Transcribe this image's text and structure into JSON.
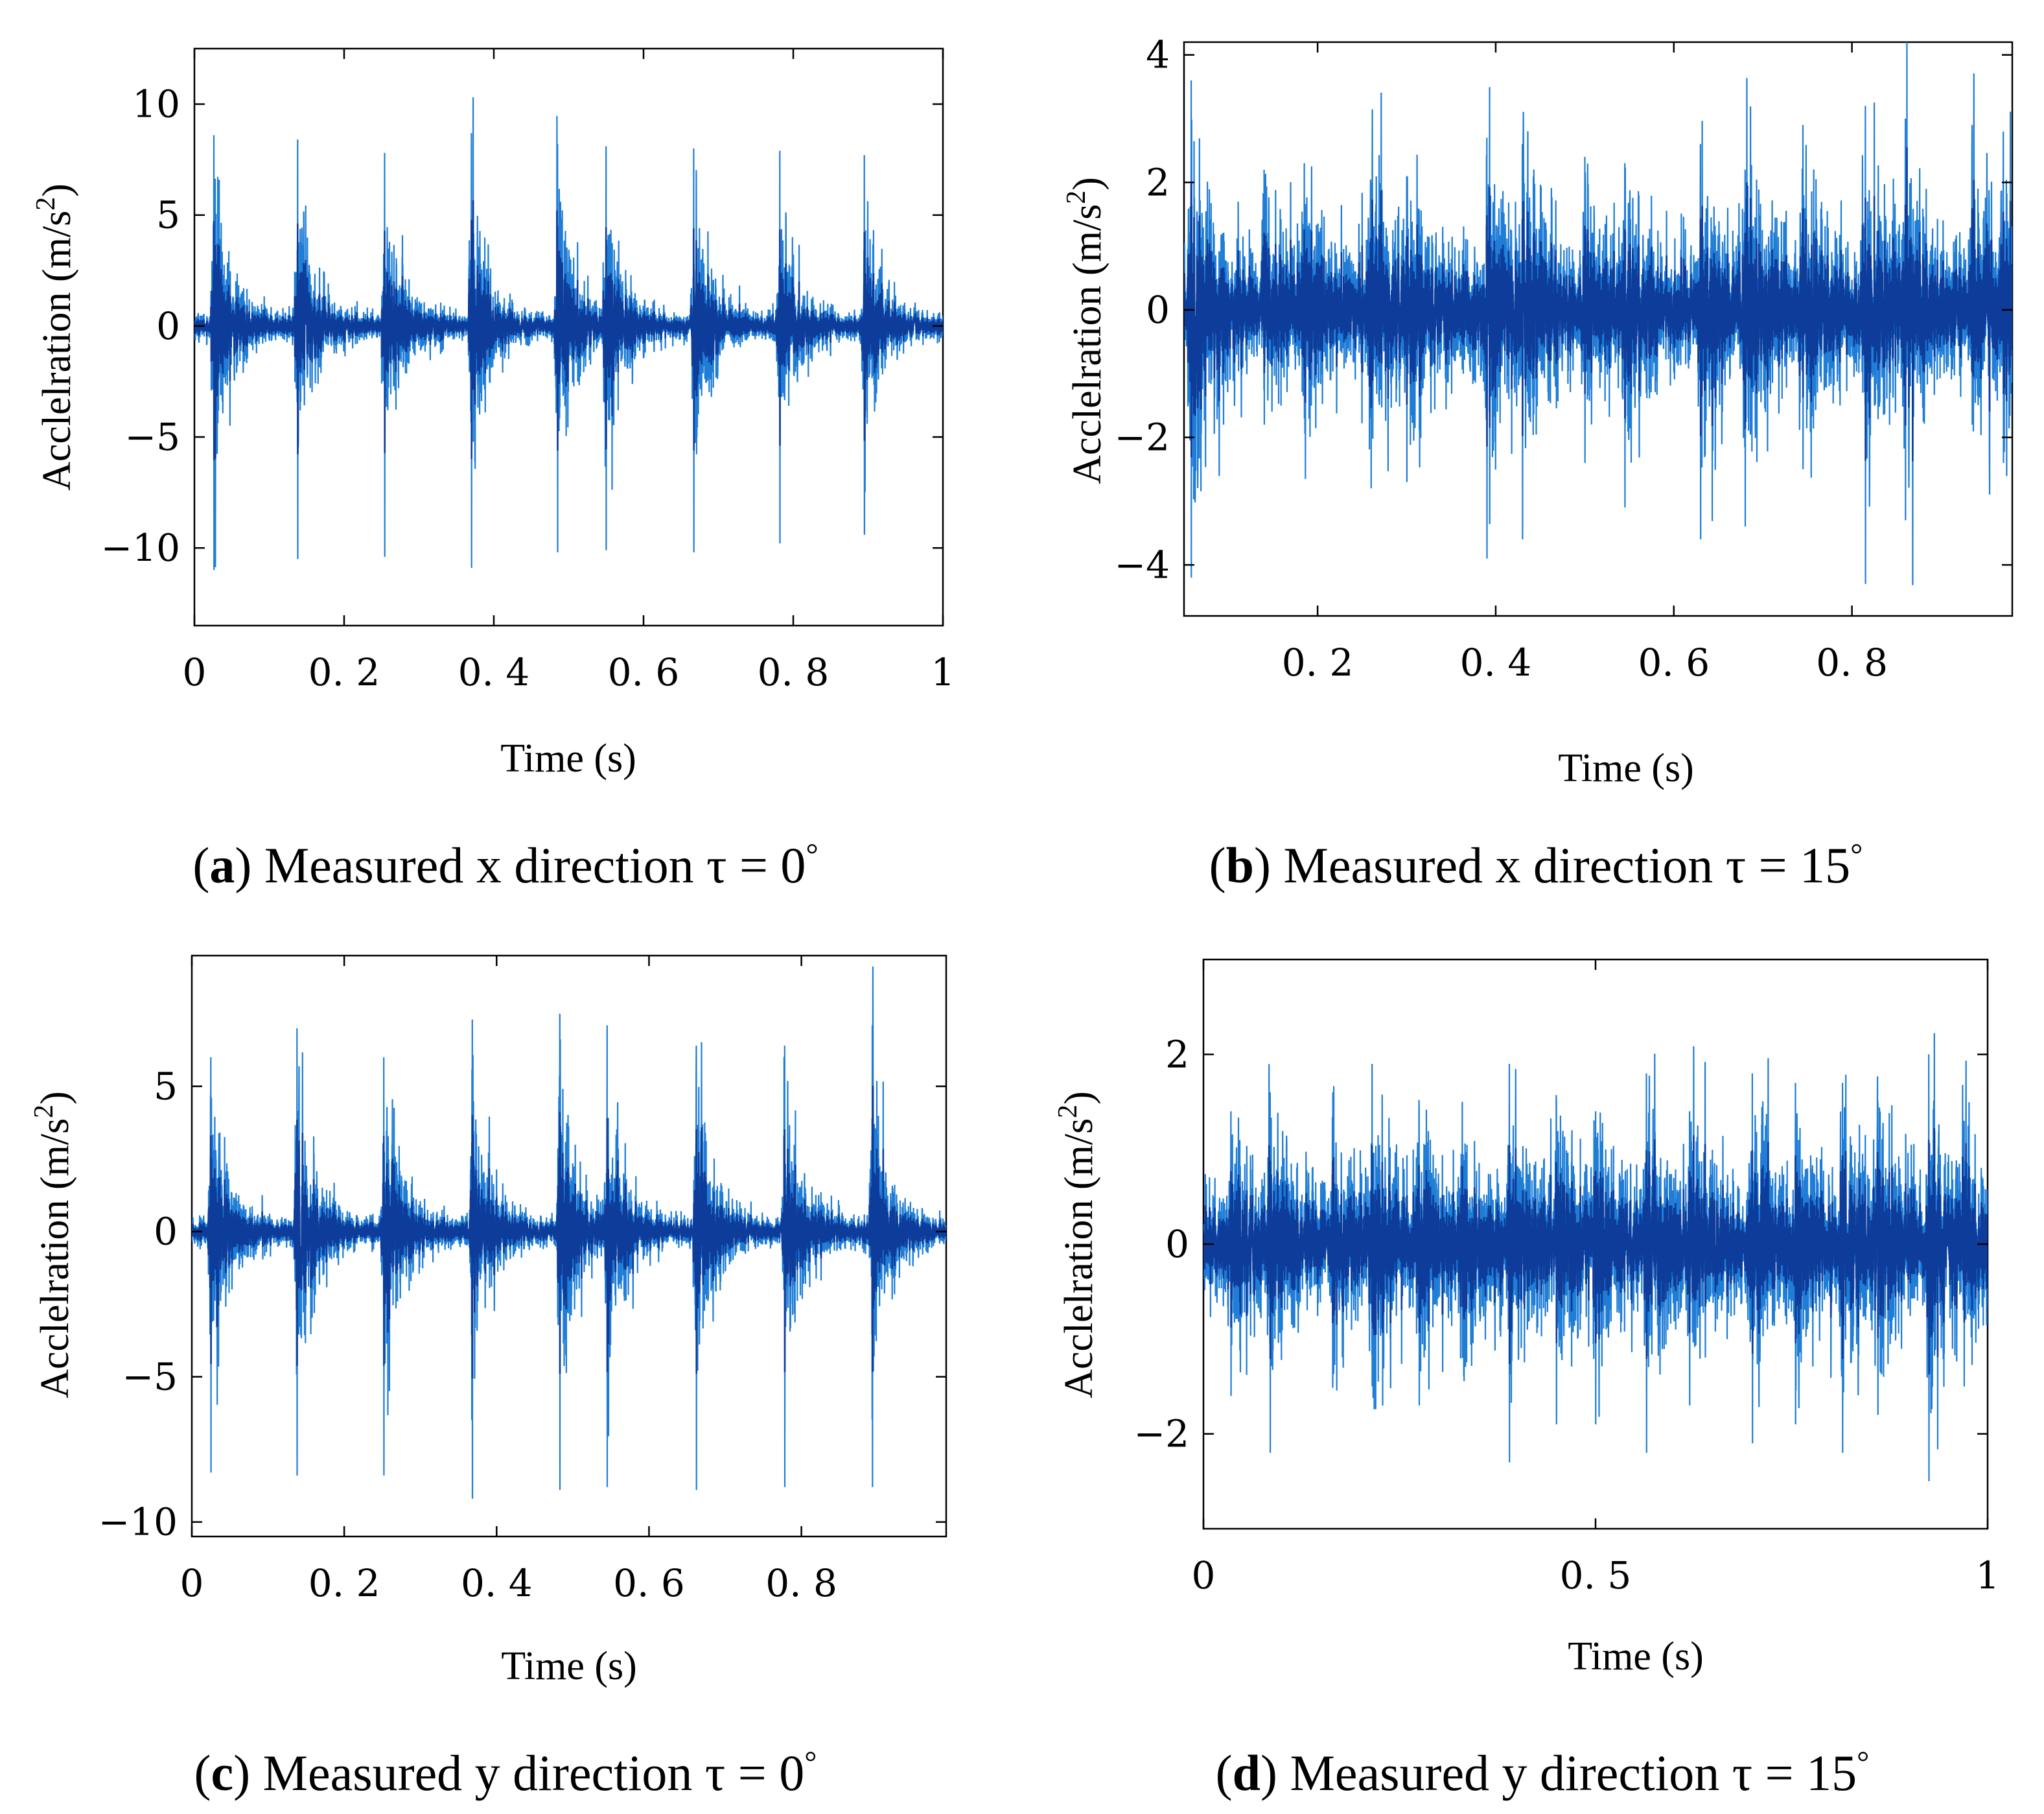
{
  "colors": {
    "signal_dark": "#0d3c9a",
    "signal_light": "#1f7dd6",
    "axis": "#000000"
  },
  "panels": [
    {
      "caption": {
        "open": "(",
        "letter": "a",
        "close": ")",
        "text": " Measured x direction  τ = 0",
        "degree": "°"
      },
      "chart_data": {
        "type": "line",
        "xlabel": "Time (s)",
        "ylabel_main": "Acclelration (m/s",
        "ylabel_sup": "2",
        "ylabel_end": ")",
        "xlim": [
          0,
          1
        ],
        "ylim": [
          -13.5,
          12.5
        ],
        "xticks": [
          0,
          0.2,
          0.4,
          0.6,
          0.8,
          1
        ],
        "xtick_labels": [
          "0",
          "0. 2",
          "0. 4",
          "0. 6",
          "0. 8",
          "1"
        ],
        "yticks": [
          10,
          5,
          0,
          -5,
          -10
        ],
        "ytick_labels": [
          "10",
          "5",
          "0",
          "−5",
          "−10"
        ],
        "noise_std": 0.3,
        "impulses": [
          {
            "t": 0.026,
            "peak_pos": 8.6,
            "peak_neg": -11.0
          },
          {
            "t": 0.138,
            "peak_pos": 8.4,
            "peak_neg": -10.5
          },
          {
            "t": 0.254,
            "peak_pos": 7.8,
            "peak_neg": -10.4
          },
          {
            "t": 0.37,
            "peak_pos": 8.7,
            "peak_neg": -10.9
          },
          {
            "t": 0.485,
            "peak_pos": 8.2,
            "peak_neg": -10.2
          },
          {
            "t": 0.55,
            "peak_pos": 8.1,
            "peak_neg": -10.1
          },
          {
            "t": 0.667,
            "peak_pos": 8.0,
            "peak_neg": -10.2
          },
          {
            "t": 0.782,
            "peak_pos": 7.9,
            "peak_neg": -9.8
          },
          {
            "t": 0.895,
            "peak_pos": 7.7,
            "peak_neg": -9.4
          }
        ]
      }
    },
    {
      "caption": {
        "open": "(",
        "letter": "b",
        "close": ")",
        "text": " Measured x direction  τ = 15",
        "degree": "°"
      },
      "chart_data": {
        "type": "line",
        "xlabel": "Time (s)",
        "ylabel_main": "Acclelration (m/s",
        "ylabel_sup": "2",
        "ylabel_end": ")",
        "xlim": [
          0.05,
          0.98
        ],
        "ylim": [
          -4.8,
          4.2
        ],
        "xticks": [
          0.2,
          0.4,
          0.6,
          0.8
        ],
        "xtick_labels": [
          "0. 2",
          "0. 4",
          "0. 6",
          "0. 8"
        ],
        "yticks": [
          4,
          2,
          0,
          -2,
          -4
        ],
        "ytick_labels": [
          "4",
          "2",
          "0",
          "−2",
          "−4"
        ],
        "noise_std": 0.45,
        "impulses": [
          {
            "t": 0.058,
            "peak_pos": 3.6,
            "peak_neg": -4.2
          },
          {
            "t": 0.14,
            "peak_pos": 2.2,
            "peak_neg": -1.8
          },
          {
            "t": 0.185,
            "peak_pos": 2.3,
            "peak_neg": -1.7
          },
          {
            "t": 0.26,
            "peak_pos": 2.0,
            "peak_neg": -2.8
          },
          {
            "t": 0.3,
            "peak_pos": 2.1,
            "peak_neg": -2.7
          },
          {
            "t": 0.39,
            "peak_pos": 2.7,
            "peak_neg": -3.9
          },
          {
            "t": 0.43,
            "peak_pos": 2.6,
            "peak_neg": -3.6
          },
          {
            "t": 0.5,
            "peak_pos": 2.4,
            "peak_neg": -2.4
          },
          {
            "t": 0.545,
            "peak_pos": 2.3,
            "peak_neg": -3.1
          },
          {
            "t": 0.63,
            "peak_pos": 2.6,
            "peak_neg": -3.6
          },
          {
            "t": 0.68,
            "peak_pos": 2.2,
            "peak_neg": -3.4
          },
          {
            "t": 0.745,
            "peak_pos": 2.9,
            "peak_neg": -2.5
          },
          {
            "t": 0.815,
            "peak_pos": 3.2,
            "peak_neg": -4.3
          },
          {
            "t": 0.86,
            "peak_pos": 3.0,
            "peak_neg": -3.3
          },
          {
            "t": 0.935,
            "peak_pos": 2.9,
            "peak_neg": -1.8
          },
          {
            "t": 0.97,
            "peak_pos": 2.8,
            "peak_neg": -2.4
          }
        ]
      }
    },
    {
      "caption": {
        "open": "(",
        "letter": "c",
        "close": ")",
        "text": " Measured y direction  τ = 0",
        "degree": "°"
      },
      "chart_data": {
        "type": "line",
        "xlabel": "Time (s)",
        "ylabel_main": "Acclelration (m/s",
        "ylabel_sup": "2",
        "ylabel_end": ")",
        "xlim": [
          0,
          0.99
        ],
        "ylim": [
          -10.5,
          9.5
        ],
        "xticks": [
          0,
          0.2,
          0.4,
          0.6,
          0.8
        ],
        "xtick_labels": [
          "0",
          "0. 2",
          "0. 4",
          "0. 6",
          "0. 8"
        ],
        "yticks": [
          5,
          0,
          -5,
          -10
        ],
        "ytick_labels": [
          "5",
          "0",
          "−5",
          "−10"
        ],
        "noise_std": 0.25,
        "impulses": [
          {
            "t": 0.025,
            "peak_pos": 6.0,
            "peak_neg": -8.3
          },
          {
            "t": 0.138,
            "peak_pos": 7.0,
            "peak_neg": -8.4
          },
          {
            "t": 0.252,
            "peak_pos": 6.0,
            "peak_neg": -8.4
          },
          {
            "t": 0.368,
            "peak_pos": 7.3,
            "peak_neg": -9.2
          },
          {
            "t": 0.483,
            "peak_pos": 7.5,
            "peak_neg": -8.9
          },
          {
            "t": 0.545,
            "peak_pos": 7.1,
            "peak_neg": -8.8
          },
          {
            "t": 0.662,
            "peak_pos": 6.4,
            "peak_neg": -8.9
          },
          {
            "t": 0.778,
            "peak_pos": 6.4,
            "peak_neg": -8.8
          },
          {
            "t": 0.893,
            "peak_pos": 7.1,
            "peak_neg": -8.8
          }
        ]
      }
    },
    {
      "caption": {
        "open": "(",
        "letter": "d",
        "close": ")",
        "text": " Measured y direction  τ = 15",
        "degree": "°"
      },
      "chart_data": {
        "type": "line",
        "xlabel": "Time (s)",
        "ylabel_main": "Acclelration (m/s",
        "ylabel_sup": "2",
        "ylabel_end": ")",
        "xlim": [
          0,
          1
        ],
        "ylim": [
          -3.0,
          3.0
        ],
        "xticks": [
          0,
          0.5,
          1
        ],
        "xtick_labels": [
          "0",
          "0. 5",
          "1"
        ],
        "yticks": [
          2,
          0,
          -2
        ],
        "ytick_labels": [
          "2",
          "0",
          "−2"
        ],
        "noise_std": 0.3,
        "impulses": [
          {
            "t": 0.035,
            "peak_pos": 1.4,
            "peak_neg": -1.6
          },
          {
            "t": 0.085,
            "peak_pos": 1.6,
            "peak_neg": -2.2
          },
          {
            "t": 0.165,
            "peak_pos": 1.6,
            "peak_neg": -1.3
          },
          {
            "t": 0.215,
            "peak_pos": 1.9,
            "peak_neg": -1.5
          },
          {
            "t": 0.275,
            "peak_pos": 1.4,
            "peak_neg": -1.7
          },
          {
            "t": 0.33,
            "peak_pos": 1.5,
            "peak_neg": -1.2
          },
          {
            "t": 0.39,
            "peak_pos": 1.9,
            "peak_neg": -2.3
          },
          {
            "t": 0.45,
            "peak_pos": 1.5,
            "peak_neg": -1.9
          },
          {
            "t": 0.5,
            "peak_pos": 1.4,
            "peak_neg": -1.9
          },
          {
            "t": 0.565,
            "peak_pos": 1.8,
            "peak_neg": -2.2
          },
          {
            "t": 0.62,
            "peak_pos": 1.4,
            "peak_neg": -1.7
          },
          {
            "t": 0.7,
            "peak_pos": 1.8,
            "peak_neg": -2.1
          },
          {
            "t": 0.755,
            "peak_pos": 1.7,
            "peak_neg": -1.9
          },
          {
            "t": 0.815,
            "peak_pos": 1.7,
            "peak_neg": -2.2
          },
          {
            "t": 0.86,
            "peak_pos": 1.5,
            "peak_neg": -1.8
          },
          {
            "t": 0.925,
            "peak_pos": 2.0,
            "peak_neg": -2.5
          },
          {
            "t": 0.97,
            "peak_pos": 1.3,
            "peak_neg": -1.5
          }
        ]
      }
    }
  ]
}
